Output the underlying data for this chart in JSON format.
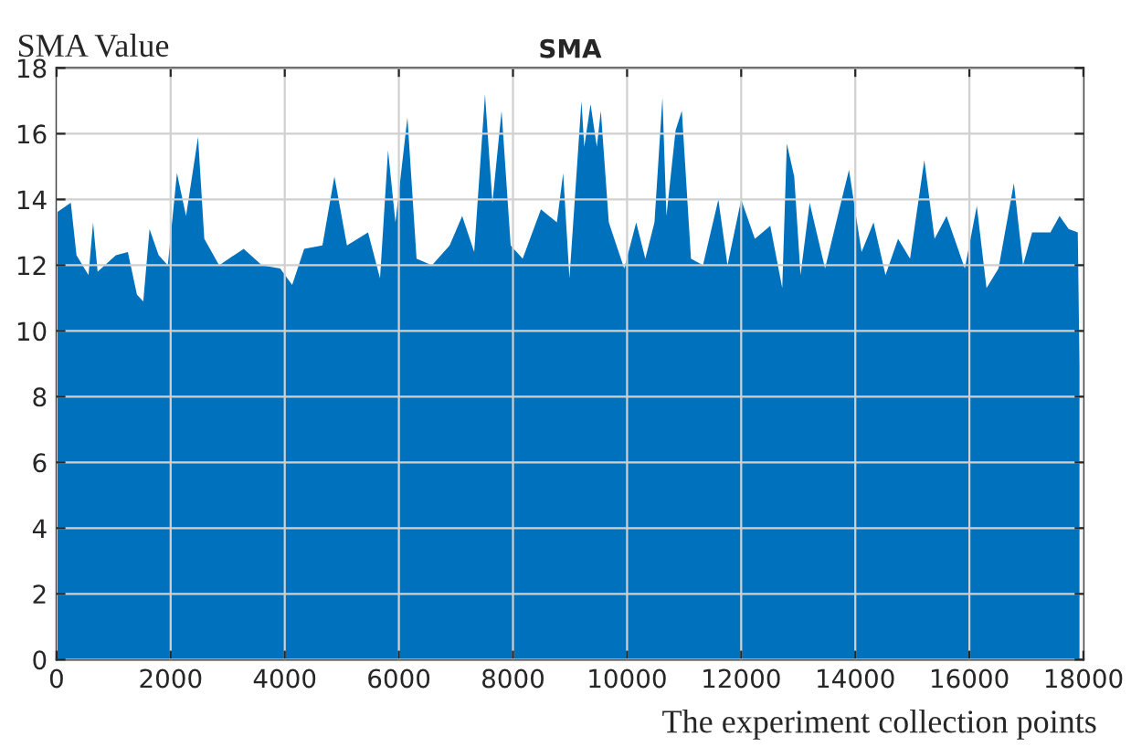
{
  "chart_data": {
    "type": "area",
    "title": "SMA",
    "ylabel": "SMA Value",
    "xlabel": "The experiment collection points",
    "x": [
      0,
      250,
      350,
      560,
      640,
      720,
      1040,
      1250,
      1410,
      1520,
      1630,
      1790,
      1950,
      2110,
      2270,
      2480,
      2590,
      2850,
      3280,
      3600,
      3920,
      4130,
      4340,
      4660,
      4870,
      5090,
      5460,
      5670,
      5810,
      5940,
      6150,
      6310,
      6580,
      6890,
      7110,
      7320,
      7510,
      7640,
      7800,
      7960,
      8170,
      8490,
      8770,
      8880,
      8990,
      9200,
      9250,
      9360,
      9470,
      9540,
      9680,
      9950,
      10160,
      10320,
      10480,
      10620,
      10690,
      10850,
      10960,
      11120,
      11330,
      11600,
      11760,
      12000,
      12240,
      12510,
      12720,
      12800,
      12930,
      13040,
      13200,
      13470,
      13790,
      13890,
      14110,
      14320,
      14530,
      14750,
      14960,
      15210,
      15390,
      15600,
      15920,
      16130,
      16300,
      16510,
      16780,
      16940,
      17100,
      17420,
      17580,
      17740,
      17900,
      17930
    ],
    "series": [
      {
        "color": "#0072bd",
        "values": [
          13.6,
          13.9,
          12.3,
          11.7,
          13.3,
          11.8,
          12.3,
          12.4,
          11.1,
          10.9,
          13.1,
          12.3,
          12.0,
          14.8,
          13.5,
          15.9,
          12.8,
          12.0,
          12.5,
          12.0,
          11.9,
          11.4,
          12.5,
          12.6,
          14.7,
          12.6,
          13.0,
          11.6,
          15.5,
          13.3,
          16.5,
          12.2,
          12.0,
          12.6,
          13.5,
          12.4,
          17.2,
          13.9,
          16.7,
          12.6,
          12.2,
          13.7,
          13.3,
          14.8,
          11.6,
          17.0,
          15.6,
          16.9,
          15.6,
          16.7,
          13.3,
          11.9,
          13.3,
          12.2,
          13.3,
          17.1,
          13.5,
          16.1,
          16.7,
          12.2,
          12.0,
          14.0,
          12.0,
          14.0,
          12.8,
          13.2,
          11.3,
          15.7,
          14.7,
          11.7,
          13.9,
          11.9,
          14.2,
          14.9,
          12.4,
          13.3,
          11.7,
          12.8,
          12.2,
          15.2,
          12.8,
          13.5,
          11.9,
          13.8,
          11.3,
          11.9,
          14.5,
          12.0,
          13.0,
          13.0,
          13.5,
          13.1,
          13.0,
          9.0
        ]
      }
    ],
    "xlim": [
      0,
      18000
    ],
    "xticks": [
      0,
      2000,
      4000,
      6000,
      8000,
      10000,
      12000,
      14000,
      16000,
      18000
    ],
    "ylim": [
      0,
      18
    ],
    "yticks": [
      0,
      2,
      4,
      6,
      8,
      10,
      12,
      14,
      16,
      18
    ],
    "grid": true
  }
}
